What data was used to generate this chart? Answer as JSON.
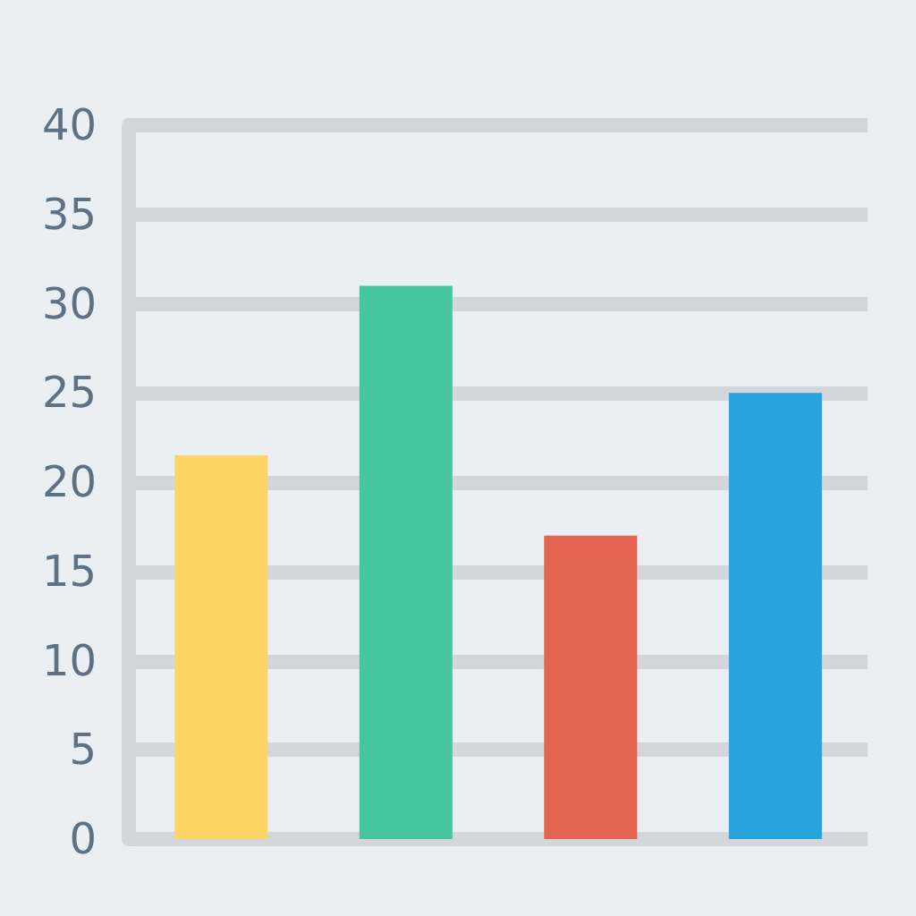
{
  "chart_data": {
    "type": "bar",
    "categories": [
      null,
      null,
      null,
      null
    ],
    "values": [
      21.5,
      31,
      17,
      25
    ],
    "colors": [
      "#fed465",
      "#45c5a1",
      "#e56553",
      "#27a3de"
    ],
    "ylim": [
      0,
      40
    ],
    "yticks": [
      0,
      5,
      10,
      15,
      20,
      25,
      30,
      35,
      40
    ],
    "grid": "y"
  }
}
